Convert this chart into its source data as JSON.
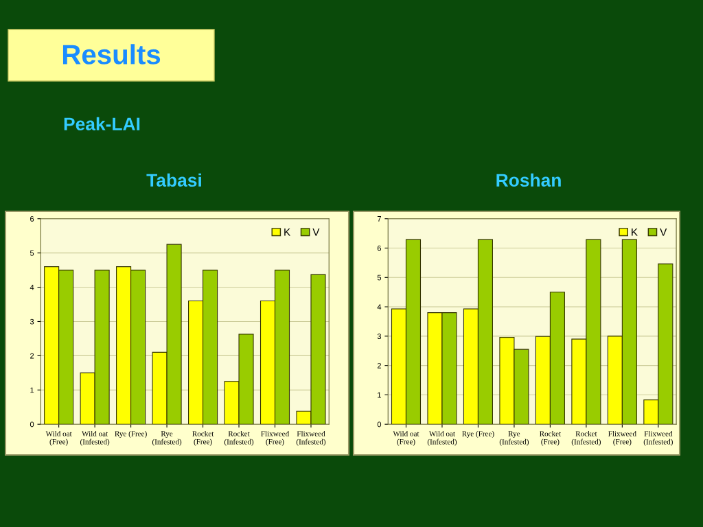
{
  "chart_data": [
    {
      "type": "bar",
      "title": "Tabasi",
      "annotations": [
        "Results",
        "Peak-LAI"
      ],
      "categories": [
        "Wild oat\n(Free)",
        "Wild oat\n(Infested)",
        "Rye (Free)",
        "Rye\n(Infested)",
        "Rocket\n(Free)",
        "Rocket\n(Infested)",
        "Flixweed\n(Free)",
        "Flixweed\n(Infested)"
      ],
      "series": [
        {
          "name": "K",
          "color": "#ffff00",
          "values": [
            4.6,
            1.5,
            4.6,
            2.1,
            3.6,
            1.25,
            3.6,
            0.38
          ]
        },
        {
          "name": "V",
          "color": "#99cc00",
          "values": [
            4.5,
            4.5,
            4.5,
            5.25,
            4.5,
            2.63,
            4.5,
            4.37
          ]
        }
      ],
      "ylim": [
        0,
        6
      ],
      "yticks": [
        0,
        1,
        2,
        3,
        4,
        5,
        6
      ],
      "grid": "y",
      "legend": "top right"
    },
    {
      "type": "bar",
      "title": "Roshan",
      "categories": [
        "Wild oat\n(Free)",
        "Wild oat\n(Infested)",
        "Rye (Free)",
        "Rye\n(Infested)",
        "Rocket\n(Free)",
        "Rocket\n(Infested)",
        "Flixweed\n(Free)",
        "Flixweed\n(Infested)"
      ],
      "series": [
        {
          "name": "K",
          "color": "#ffff00",
          "values": [
            3.93,
            3.8,
            3.93,
            2.96,
            2.99,
            2.9,
            3.0,
            0.83
          ]
        },
        {
          "name": "V",
          "color": "#99cc00",
          "values": [
            6.29,
            3.8,
            6.29,
            2.55,
            4.5,
            6.29,
            6.29,
            5.46
          ]
        }
      ],
      "ylim": [
        0,
        7
      ],
      "yticks": [
        0,
        1,
        2,
        3,
        4,
        5,
        6,
        7
      ],
      "grid": "y",
      "legend": "top right"
    }
  ]
}
